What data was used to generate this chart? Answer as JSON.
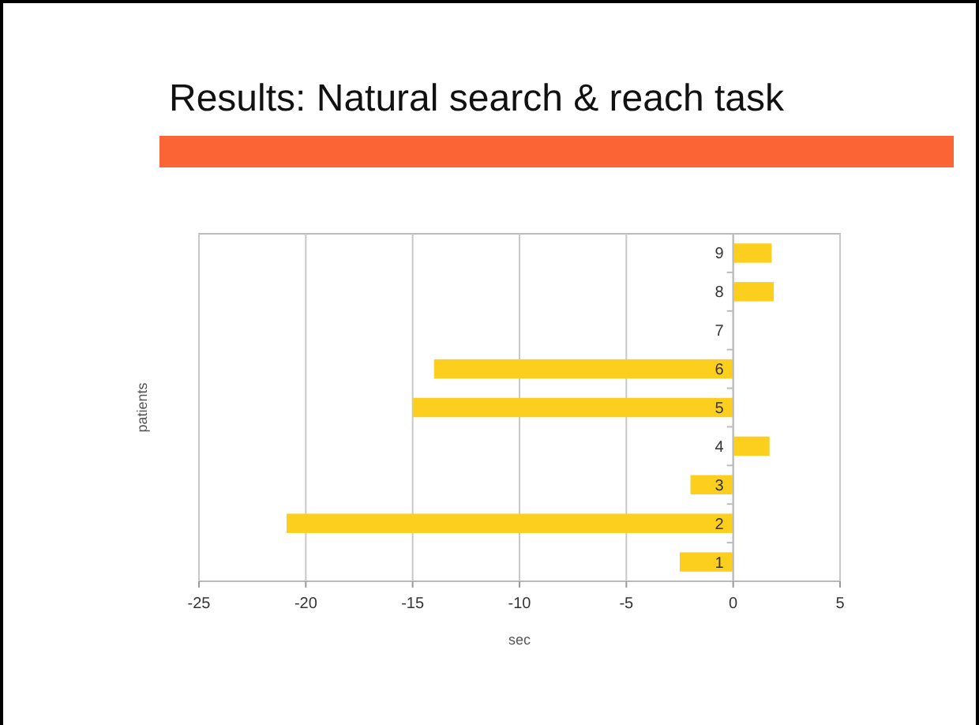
{
  "chart_data": {
    "type": "bar",
    "orientation": "horizontal",
    "title": "Results: Natural search & reach task",
    "xlabel": "sec",
    "ylabel": "patients",
    "categories": [
      "9",
      "8",
      "7",
      "6",
      "5",
      "4",
      "3",
      "2",
      "1"
    ],
    "values": [
      1.8,
      1.9,
      0,
      -14,
      -15,
      1.7,
      -2,
      -20.9,
      -2.5
    ],
    "color": "#fccf1f",
    "xlim": [
      -25,
      5
    ],
    "xticks": [
      -25,
      -20,
      -15,
      -10,
      -5,
      0,
      5
    ],
    "grid": "x"
  }
}
